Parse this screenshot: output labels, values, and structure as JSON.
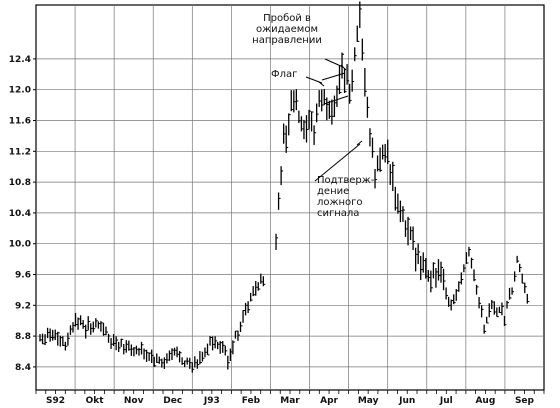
{
  "chart_data": {
    "type": "ohlc",
    "title": "",
    "xlabel": "",
    "ylabel": "",
    "grid": true,
    "ylim": [
      8.1,
      13.1
    ],
    "yticks": [
      8.4,
      8.8,
      9.2,
      9.6,
      10.0,
      10.4,
      10.8,
      11.2,
      11.6,
      12.0,
      12.4
    ],
    "ytick_labels": [
      "8.4",
      "8.8",
      "9.2",
      "9.6",
      "10.0",
      "10.4",
      "10.8",
      "11.2",
      "11.6",
      "12.0",
      "12.4"
    ],
    "months": [
      "S92",
      "Okt",
      "Nov",
      "Dec",
      "J93",
      "Feb",
      "Mar",
      "Apr",
      "May",
      "Jun",
      "Jul",
      "Aug",
      "Sep"
    ],
    "price_path": [
      [
        0,
        8.8
      ],
      [
        5,
        8.85
      ],
      [
        10,
        8.7
      ],
      [
        14,
        9.05
      ],
      [
        18,
        8.9
      ],
      [
        24,
        8.95
      ],
      [
        27,
        8.75
      ],
      [
        33,
        8.7
      ],
      [
        38,
        8.6
      ],
      [
        42,
        8.55
      ],
      [
        48,
        8.45
      ],
      [
        54,
        8.6
      ],
      [
        58,
        8.45
      ],
      [
        61,
        8.4
      ],
      [
        67,
        8.7
      ],
      [
        72,
        8.65
      ],
      [
        74,
        8.5
      ],
      [
        78,
        8.85
      ],
      [
        82,
        9.2
      ],
      [
        86,
        9.5
      ],
      [
        90,
        9.6
      ],
      [
        93,
        10.1
      ],
      [
        96,
        11.3
      ],
      [
        100,
        11.9
      ],
      [
        104,
        11.4
      ],
      [
        108,
        11.5
      ],
      [
        110,
        11.9
      ],
      [
        115,
        11.7
      ],
      [
        119,
        12.3
      ],
      [
        122,
        11.95
      ],
      [
        126,
        12.85
      ],
      [
        130,
        11.4
      ],
      [
        132,
        10.9
      ],
      [
        136,
        11.3
      ],
      [
        140,
        10.6
      ],
      [
        145,
        10.1
      ],
      [
        150,
        9.8
      ],
      [
        154,
        9.6
      ],
      [
        157,
        9.6
      ],
      [
        162,
        9.2
      ],
      [
        166,
        9.6
      ],
      [
        169,
        9.95
      ],
      [
        172,
        9.4
      ],
      [
        175,
        8.95
      ],
      [
        178,
        9.2
      ],
      [
        183,
        9.05
      ],
      [
        186,
        9.4
      ],
      [
        188,
        9.75
      ],
      [
        192,
        9.3
      ]
    ],
    "annotations": {
      "breakout": [
        "Пробой в",
        "ожидаемом",
        "направлении"
      ],
      "flag": [
        "Флаг"
      ],
      "false_signal": [
        "Подтверж-",
        "дение",
        "ложного",
        "сигнала"
      ]
    }
  }
}
